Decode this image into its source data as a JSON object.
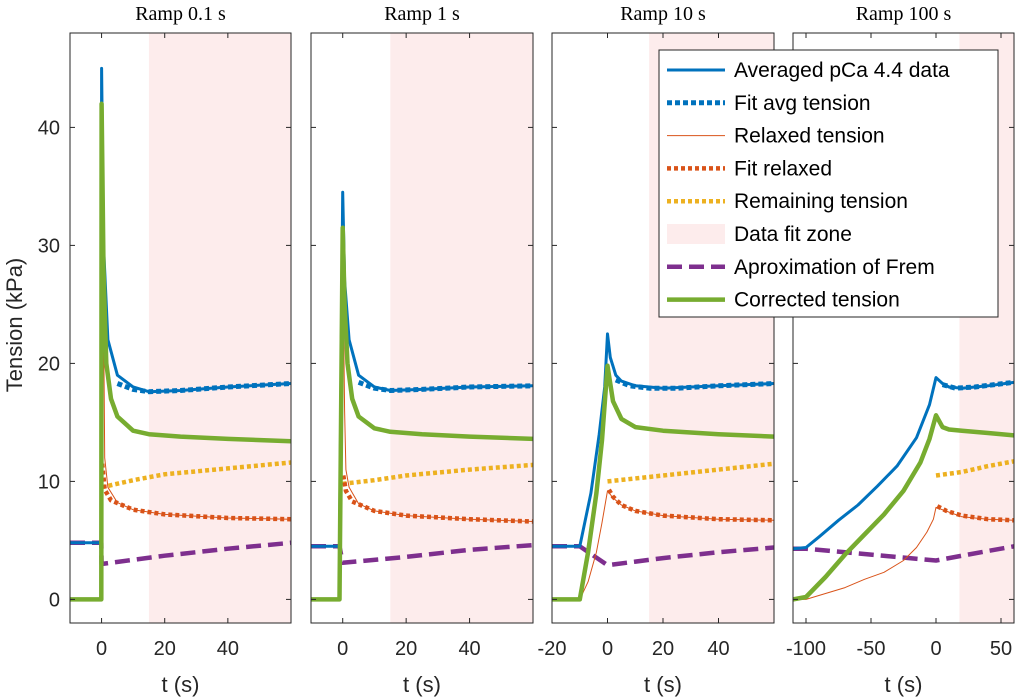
{
  "chart_data": {
    "type": "line",
    "ylabel": "Tension (kPa)",
    "ylim": [
      -2,
      48
    ],
    "yticks": [
      0,
      10,
      20,
      30,
      40
    ],
    "colors": {
      "avg": "#0072BD",
      "fit_avg": "#0072BD",
      "relaxed": "#D95319",
      "fit_relaxed": "#D95319",
      "remaining": "#EDB120",
      "fit_zone": "#FDECEC",
      "frem": "#7E2F8E",
      "corrected": "#77AC30"
    },
    "legend": {
      "position": "top-right",
      "entries": [
        {
          "key": "avg",
          "label": "Averaged pCa 4.4 data",
          "style": "solid"
        },
        {
          "key": "fit_avg",
          "label": "Fit avg tension",
          "style": "dotted"
        },
        {
          "key": "relaxed",
          "label": "Relaxed tension",
          "style": "thin"
        },
        {
          "key": "fit_relaxed",
          "label": "Fit relaxed",
          "style": "dotted"
        },
        {
          "key": "remaining",
          "label": "Remaining tension",
          "style": "dotted"
        },
        {
          "key": "fit_zone",
          "label": "Data fit zone",
          "style": "patch"
        },
        {
          "key": "frem",
          "label": "Aproximation of Frem",
          "style": "dashed"
        },
        {
          "key": "corrected",
          "label": "Corrected tension",
          "style": "thick"
        }
      ]
    },
    "panels": [
      {
        "title": "Ramp 0.1 s",
        "xlabel": "t (s)",
        "xlim": [
          -10,
          60
        ],
        "xticks": [
          0,
          20,
          40
        ],
        "fit_zone": [
          15,
          60
        ],
        "series": {
          "avg": [
            [
              -10,
              4.8
            ],
            [
              -0.1,
              4.8
            ],
            [
              0,
              45
            ],
            [
              0.6,
              30
            ],
            [
              2,
              22
            ],
            [
              5,
              19
            ],
            [
              10,
              18
            ],
            [
              15,
              17.6
            ],
            [
              25,
              17.7
            ],
            [
              40,
              18.0
            ],
            [
              60,
              18.3
            ]
          ],
          "fit_avg": [
            [
              5,
              18.3
            ],
            [
              10,
              17.8
            ],
            [
              15,
              17.6
            ],
            [
              25,
              17.7
            ],
            [
              40,
              18.0
            ],
            [
              60,
              18.3
            ]
          ],
          "relaxed": [
            [
              -10,
              0
            ],
            [
              -0.1,
              0
            ],
            [
              0,
              41
            ],
            [
              0.6,
              25
            ],
            [
              1,
              12
            ],
            [
              2,
              9.5
            ],
            [
              5,
              8.2
            ],
            [
              10,
              7.6
            ],
            [
              20,
              7.2
            ],
            [
              40,
              6.9
            ],
            [
              60,
              6.8
            ]
          ],
          "fit_relaxed": [
            [
              0.2,
              11.5
            ],
            [
              1,
              9.3
            ],
            [
              3,
              8.4
            ],
            [
              10,
              7.6
            ],
            [
              20,
              7.2
            ],
            [
              40,
              6.9
            ],
            [
              60,
              6.8
            ]
          ],
          "remaining": [
            [
              0,
              9.5
            ],
            [
              10,
              10.1
            ],
            [
              20,
              10.6
            ],
            [
              40,
              11.1
            ],
            [
              60,
              11.6
            ]
          ],
          "frem": [
            [
              -10,
              4.8
            ],
            [
              -0.1,
              4.8
            ],
            [
              0,
              3.0
            ],
            [
              20,
              3.7
            ],
            [
              40,
              4.3
            ],
            [
              60,
              4.8
            ]
          ],
          "corrected": [
            [
              -10,
              0
            ],
            [
              -0.1,
              0
            ],
            [
              0,
              42
            ],
            [
              0.6,
              28
            ],
            [
              1.5,
              20
            ],
            [
              3,
              17
            ],
            [
              5,
              15.5
            ],
            [
              10,
              14.3
            ],
            [
              15,
              14.0
            ],
            [
              25,
              13.8
            ],
            [
              40,
              13.6
            ],
            [
              60,
              13.4
            ]
          ]
        }
      },
      {
        "title": "Ramp 1 s",
        "xlabel": "t (s)",
        "xlim": [
          -10,
          60
        ],
        "xticks": [
          0,
          20,
          40
        ],
        "fit_zone": [
          15,
          60
        ],
        "series": {
          "avg": [
            [
              -10,
              4.5
            ],
            [
              -1,
              4.5
            ],
            [
              0,
              34.5
            ],
            [
              0.6,
              27
            ],
            [
              2,
              22
            ],
            [
              5,
              19
            ],
            [
              10,
              18.0
            ],
            [
              15,
              17.7
            ],
            [
              25,
              17.8
            ],
            [
              40,
              18.0
            ],
            [
              60,
              18.1
            ]
          ],
          "fit_avg": [
            [
              5,
              18.4
            ],
            [
              10,
              17.9
            ],
            [
              15,
              17.7
            ],
            [
              25,
              17.8
            ],
            [
              40,
              18.0
            ],
            [
              60,
              18.1
            ]
          ],
          "relaxed": [
            [
              -10,
              0
            ],
            [
              -1,
              0
            ],
            [
              0,
              30
            ],
            [
              0.6,
              16
            ],
            [
              1,
              11
            ],
            [
              2,
              9.5
            ],
            [
              5,
              8.1
            ],
            [
              10,
              7.5
            ],
            [
              20,
              7.1
            ],
            [
              40,
              6.8
            ],
            [
              60,
              6.6
            ]
          ],
          "fit_relaxed": [
            [
              0.2,
              10.5
            ],
            [
              1,
              9.2
            ],
            [
              3,
              8.3
            ],
            [
              10,
              7.5
            ],
            [
              20,
              7.1
            ],
            [
              40,
              6.8
            ],
            [
              60,
              6.6
            ]
          ],
          "remaining": [
            [
              0,
              9.8
            ],
            [
              10,
              10.1
            ],
            [
              20,
              10.5
            ],
            [
              40,
              11.0
            ],
            [
              60,
              11.4
            ]
          ],
          "frem": [
            [
              -10,
              4.5
            ],
            [
              -1,
              4.5
            ],
            [
              0,
              3.1
            ],
            [
              20,
              3.6
            ],
            [
              40,
              4.2
            ],
            [
              60,
              4.6
            ]
          ],
          "corrected": [
            [
              -10,
              0
            ],
            [
              -1,
              0
            ],
            [
              0,
              31.5
            ],
            [
              0.6,
              25
            ],
            [
              1.5,
              20
            ],
            [
              3,
              17
            ],
            [
              5,
              15.5
            ],
            [
              10,
              14.5
            ],
            [
              15,
              14.2
            ],
            [
              25,
              14.0
            ],
            [
              40,
              13.8
            ],
            [
              60,
              13.6
            ]
          ]
        }
      },
      {
        "title": "Ramp 10 s",
        "xlabel": "t (s)",
        "xlim": [
          -20,
          60
        ],
        "xticks": [
          -20,
          0,
          20,
          40
        ],
        "fit_zone": [
          15,
          60
        ],
        "series": {
          "avg": [
            [
              -20,
              4.5
            ],
            [
              -10,
              4.5
            ],
            [
              -6,
              9
            ],
            [
              -3,
              14
            ],
            [
              -1,
              18
            ],
            [
              0,
              22.5
            ],
            [
              1,
              20.5
            ],
            [
              3,
              19
            ],
            [
              5,
              18.5
            ],
            [
              10,
              18.1
            ],
            [
              20,
              17.9
            ],
            [
              40,
              18.1
            ],
            [
              60,
              18.3
            ]
          ],
          "fit_avg": [
            [
              3,
              18.6
            ],
            [
              8,
              18.1
            ],
            [
              15,
              17.9
            ],
            [
              25,
              17.9
            ],
            [
              40,
              18.1
            ],
            [
              60,
              18.3
            ]
          ],
          "relaxed": [
            [
              -20,
              0
            ],
            [
              -10,
              0
            ],
            [
              -7,
              1.5
            ],
            [
              -4,
              4
            ],
            [
              -2,
              6.5
            ],
            [
              0,
              9.2
            ],
            [
              2,
              8.6
            ],
            [
              5,
              8.0
            ],
            [
              10,
              7.5
            ],
            [
              20,
              7.1
            ],
            [
              40,
              6.8
            ],
            [
              60,
              6.7
            ]
          ],
          "fit_relaxed": [
            [
              0.5,
              9.3
            ],
            [
              2,
              8.7
            ],
            [
              5,
              8.0
            ],
            [
              10,
              7.5
            ],
            [
              20,
              7.1
            ],
            [
              40,
              6.8
            ],
            [
              60,
              6.7
            ]
          ],
          "remaining": [
            [
              0,
              10.0
            ],
            [
              20,
              10.5
            ],
            [
              40,
              11.0
            ],
            [
              60,
              11.5
            ]
          ],
          "frem": [
            [
              -20,
              4.5
            ],
            [
              -10,
              4.5
            ],
            [
              0,
              2.9
            ],
            [
              20,
              3.5
            ],
            [
              40,
              4.0
            ],
            [
              60,
              4.4
            ]
          ],
          "corrected": [
            [
              -20,
              0
            ],
            [
              -10,
              0
            ],
            [
              -7,
              4
            ],
            [
              -4,
              9
            ],
            [
              -2,
              13.5
            ],
            [
              0,
              19.8
            ],
            [
              2,
              16.8
            ],
            [
              5,
              15.3
            ],
            [
              10,
              14.6
            ],
            [
              20,
              14.3
            ],
            [
              40,
              14.0
            ],
            [
              60,
              13.8
            ]
          ]
        }
      },
      {
        "title": "Ramp 100 s",
        "xlabel": "t (s)",
        "xlim": [
          -110,
          60
        ],
        "xticks": [
          -100,
          -50,
          0,
          50
        ],
        "fit_zone": [
          18,
          60
        ],
        "series": {
          "avg": [
            [
              -110,
              4.3
            ],
            [
              -100,
              4.4
            ],
            [
              -90,
              5.3
            ],
            [
              -75,
              6.7
            ],
            [
              -60,
              8.0
            ],
            [
              -45,
              9.6
            ],
            [
              -30,
              11.3
            ],
            [
              -15,
              13.7
            ],
            [
              -5,
              16.5
            ],
            [
              0,
              18.8
            ],
            [
              5,
              18.3
            ],
            [
              10,
              18.0
            ],
            [
              20,
              17.9
            ],
            [
              40,
              18.1
            ],
            [
              60,
              18.4
            ]
          ],
          "fit_avg": [
            [
              5,
              18.2
            ],
            [
              15,
              17.9
            ],
            [
              30,
              18.0
            ],
            [
              45,
              18.2
            ],
            [
              60,
              18.4
            ]
          ],
          "relaxed": [
            [
              -110,
              0
            ],
            [
              -100,
              0
            ],
            [
              -85,
              0.5
            ],
            [
              -70,
              1.0
            ],
            [
              -55,
              1.7
            ],
            [
              -40,
              2.3
            ],
            [
              -25,
              3.3
            ],
            [
              -15,
              4.4
            ],
            [
              -7,
              5.7
            ],
            [
              -2,
              6.8
            ],
            [
              0,
              7.8
            ],
            [
              10,
              7.4
            ],
            [
              20,
              7.0
            ],
            [
              40,
              6.8
            ],
            [
              60,
              6.7
            ]
          ],
          "fit_relaxed": [
            [
              1,
              7.9
            ],
            [
              8,
              7.5
            ],
            [
              20,
              7.1
            ],
            [
              40,
              6.8
            ],
            [
              60,
              6.7
            ]
          ],
          "remaining": [
            [
              0,
              10.5
            ],
            [
              20,
              10.8
            ],
            [
              40,
              11.3
            ],
            [
              60,
              11.7
            ]
          ],
          "frem": [
            [
              -110,
              4.3
            ],
            [
              -100,
              4.3
            ],
            [
              -50,
              3.8
            ],
            [
              0,
              3.3
            ],
            [
              20,
              3.7
            ],
            [
              40,
              4.1
            ],
            [
              60,
              4.5
            ]
          ],
          "corrected": [
            [
              -110,
              0
            ],
            [
              -100,
              0.2
            ],
            [
              -85,
              1.9
            ],
            [
              -70,
              3.8
            ],
            [
              -55,
              5.5
            ],
            [
              -40,
              7.2
            ],
            [
              -25,
              9.2
            ],
            [
              -12,
              11.6
            ],
            [
              -5,
              13.6
            ],
            [
              0,
              15.6
            ],
            [
              5,
              14.6
            ],
            [
              10,
              14.4
            ],
            [
              20,
              14.3
            ],
            [
              40,
              14.1
            ],
            [
              60,
              13.9
            ]
          ]
        }
      }
    ]
  }
}
